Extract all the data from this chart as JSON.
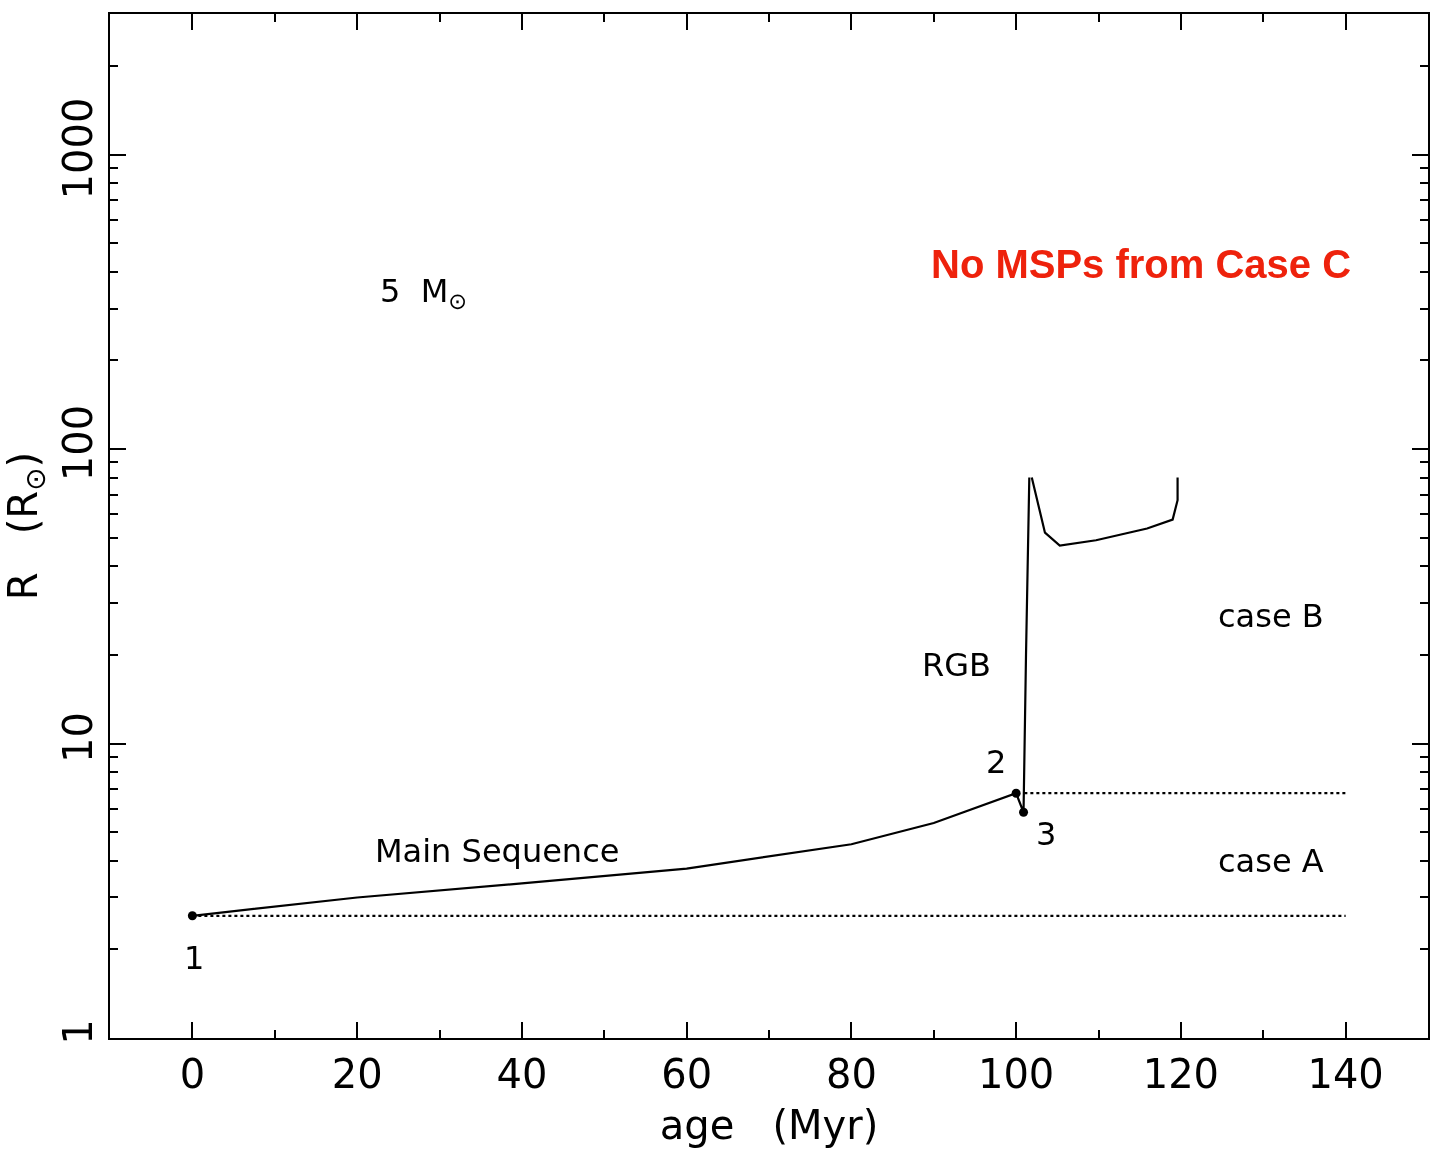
{
  "chart_data": {
    "type": "line",
    "xlabel": "age   (Myr)",
    "ylabel": "R   (R$_{⊙}$)",
    "log": "y",
    "xlim": [
      -10,
      150
    ],
    "ylim": [
      1,
      3000
    ],
    "xticks": [
      0,
      {
        "value": 10,
        "label": null
      },
      20,
      {
        "value": 30,
        "label": null
      },
      40,
      {
        "value": 50,
        "label": null
      },
      60,
      {
        "value": 70,
        "label": null
      },
      80,
      {
        "value": 90,
        "label": null
      },
      100,
      {
        "value": 110,
        "label": null
      },
      120,
      {
        "value": 130,
        "label": null
      },
      140
    ],
    "yticks": [
      1,
      {
        "value": 2,
        "label": null
      },
      {
        "value": 3,
        "label": null
      },
      {
        "value": 4,
        "label": null
      },
      {
        "value": 5,
        "label": null
      },
      {
        "value": 6,
        "label": null
      },
      {
        "value": 7,
        "label": null
      },
      {
        "value": 8,
        "label": null
      },
      {
        "value": 9,
        "label": null
      },
      10,
      {
        "value": 20,
        "label": null
      },
      {
        "value": 30,
        "label": null
      },
      {
        "value": 40,
        "label": null
      },
      {
        "value": 50,
        "label": null
      },
      {
        "value": 60,
        "label": null
      },
      {
        "value": 70,
        "label": null
      },
      {
        "value": 80,
        "label": null
      },
      {
        "value": 90,
        "label": null
      },
      100,
      {
        "value": 200,
        "label": null
      },
      {
        "value": 300,
        "label": null
      },
      {
        "value": 400,
        "label": null
      },
      {
        "value": 500,
        "label": null
      },
      {
        "value": 600,
        "label": null
      },
      {
        "value": 700,
        "label": null
      },
      {
        "value": 800,
        "label": null
      },
      {
        "value": 900,
        "label": null
      },
      1000,
      {
        "value": 2000,
        "label": null
      },
      {
        "value": 3000,
        "label": null
      }
    ],
    "series": [
      {
        "color": "#000000",
        "marker": "none",
        "line_style": "solid",
        "x": [
          0,
          20,
          40,
          60,
          80,
          90,
          100,
          100.9,
          101.2,
          101.6,
          null,
          101.9,
          103.5,
          105.3,
          109.7,
          115.9,
          119,
          119.6,
          119.6
        ],
        "values": [
          2.6,
          3.0,
          3.35,
          3.76,
          4.55,
          5.37,
          6.78,
          5.84,
          20,
          80,
          null,
          80,
          52,
          47,
          49,
          53.7,
          57.6,
          67,
          80
        ]
      },
      {
        "color": "#000000",
        "marker": "none",
        "line_style": "dotted",
        "x": [
          0,
          140
        ],
        "values": [
          2.6,
          2.6
        ]
      },
      {
        "color": "#000000",
        "marker": "none",
        "line_style": "dotted",
        "x": [
          101,
          140
        ],
        "values": [
          6.78,
          6.78
        ]
      },
      {
        "type": "scatter",
        "color": "#000000",
        "marker": "circle",
        "x": [
          0,
          100,
          100.9
        ],
        "values": [
          2.6,
          6.78,
          5.84
        ]
      }
    ],
    "annotations": [
      "1",
      "2",
      "3",
      "Main Sequence",
      "RGB",
      "case B",
      "case A",
      "5  M$_{⊙}$",
      "No MSPs from Case C"
    ]
  }
}
